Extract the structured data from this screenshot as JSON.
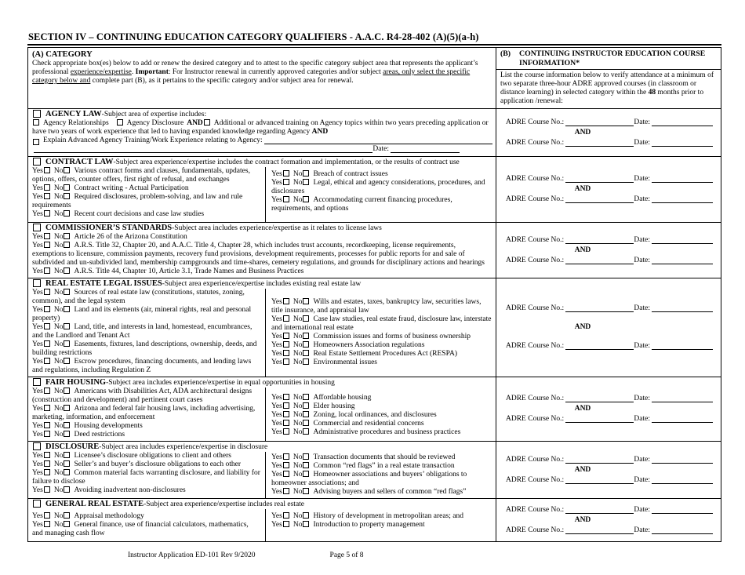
{
  "title": "SECTION IV – CONTINUING EDUCATION CATEGORY QUALIFIERS - A.A.C. R4-28-402 (A)(5)(a-h)",
  "labels": {
    "yes": "Yes",
    "no": "No",
    "and": "AND",
    "course_no": "ADRE Course No.:",
    "date": "Date:"
  },
  "header_a": {
    "title": "(A) CATEGORY",
    "intro_parts": [
      {
        "t": "Check appropriate box(es) below to add or renew the desired category and to attest to the specific category subject area that represents the applicant’s professional "
      },
      {
        "t": "experience/expertise",
        "u": true
      },
      {
        "t": ". "
      },
      {
        "t": "Important",
        "b": true
      },
      {
        "t": ": For Instructor renewal in currently approved categories and/or subject "
      },
      {
        "t": "areas, only select the specific category below and",
        "u": true
      },
      {
        "t": " complete part (B), as it pertains to the specific category and/or subject area for renewal."
      }
    ]
  },
  "header_b": {
    "prefix": "(B)",
    "title": "CONTINUING INSTRUCTOR EDUCATION COURSE INFORMATION*",
    "paragraph_parts": [
      {
        "t": "List the course information below to verify attendance at a minimum of two separate three-hour ADRE approved courses (in classroom or distance learning) in selected category within the "
      },
      {
        "t": "48",
        "b": true
      },
      {
        "t": " months prior to application /renewal:"
      }
    ]
  },
  "sections": [
    {
      "id": "agency-law",
      "type": "agency",
      "name": "AGENCY LAW",
      "desc": "-Subject area of expertise includes:",
      "opt1": "Agency Relationships",
      "opt2": "Agency Disclosure",
      "and1": "AND",
      "opt3": "Additional or advanced training on Agency topics within two years preceding application",
      "cont": "or have two years of work experience that led to having expanded knowledge regarding Agency ",
      "and2": "AND",
      "explain": "Explain Advanced Agency Training/Work Experience relating to Agency:",
      "date_label": "Date:"
    },
    {
      "id": "contract-law",
      "type": "two",
      "name": "CONTRACT LAW",
      "desc": "-Subject area experience/expertise includes the contract formation and implementation, or the results of contract use",
      "left": [
        "Various contract forms and clauses, fundamentals, updates, options, offers, counter offers, first right of refusal, and exchanges",
        "Contract writing - Actual Participation",
        "Required disclosures, problem-solving, and law and rule requirements",
        "Recent court decisions and case law studies"
      ],
      "right": [
        "Breach of contract issues",
        "Legal, ethical and agency considerations, procedures, and disclosures",
        "Accommodating current financing procedures, requirements, and options"
      ]
    },
    {
      "id": "commissioners-standards",
      "type": "one",
      "name": "COMMISSIONER’S STANDARDS",
      "desc": "-Subject area includes experience/expertise as it relates to license laws",
      "items": [
        "Article 26 of the Arizona Constitution",
        "A.R.S. Title 32, Chapter 20, and A.A.C. Title 4, Chapter 28, which includes trust accounts, recordkeeping, license requirements, exemptions to licensure, commission payments, recovery fund provisions, development requirements, processes for public reports for and sale of subdivided and un-subdivided land, membership campgrounds and time-shares, cemetery regulations, and grounds for disciplinary actions and hearings",
        "A.R.S. Title 44, Chapter 10, Article 3.1, Trade Names and Business Practices"
      ]
    },
    {
      "id": "real-estate-legal-issues",
      "type": "two",
      "name": "REAL ESTATE LEGAL ISSUES",
      "desc": "-Subject area experience/expertise includes existing real estate law",
      "left": [
        "Sources of real estate law (constitutions, statutes, zoning, common), and the legal system",
        "Land and its elements (air, mineral rights, real and personal property)",
        "Land, title, and interests in land, homestead, encumbrances, and the Landlord and Tenant Act",
        "Easements, fixtures, land descriptions, ownership, deeds, and building restrictions",
        "Escrow procedures, financing documents, and lending laws and regulations, including Regulation Z"
      ],
      "right": [
        "Wills and estates, taxes, bankruptcy law, securities laws, title insurance, and appraisal law",
        "Case law studies, real estate fraud, disclosure law, interstate and international real estate",
        "Commission issues and forms of business ownership",
        "Homeowners Association regulations",
        "Real Estate Settlement Procedures Act (RESPA)",
        "Environmental issues"
      ]
    },
    {
      "id": "fair-housing",
      "type": "two",
      "name": "FAIR HOUSING",
      "desc": "-Subject area includes experience/expertise in equal opportunities in housing",
      "left": [
        "Americans with Disabilities Act, ADA architectural designs (construction and development) and pertinent court cases",
        "Arizona and federal fair housing laws, including advertising, marketing, information, and enforcement",
        "Housing developments",
        "Deed restrictions"
      ],
      "right": [
        "Affordable housing",
        "Elder housing",
        "Zoning, local ordinances, and disclosures",
        "Commercial and residential concerns",
        "Administrative procedures and business practices"
      ]
    },
    {
      "id": "disclosure",
      "type": "two",
      "name": "DISCLOSURE",
      "desc": "-Subject area includes experience/expertise in disclosure",
      "left": [
        "Licensee’s disclosure obligations to client and others",
        "Seller’s and buyer’s disclosure obligations to each other",
        "Common material facts warranting disclosure, and liability for failure to disclose",
        "Avoiding inadvertent non-disclosures"
      ],
      "right": [
        "Transaction documents that should be reviewed",
        "Common “red flags” in a real estate transaction",
        "Homeowner associations and buyers’ obligations to homeowner associations; and",
        "Advising buyers and sellers of common “red flags”"
      ]
    },
    {
      "id": "general-real-estate",
      "type": "two",
      "name": "GENERAL REAL ESTATE",
      "desc": "-Subject area experience/expertise includes real estate",
      "left": [
        "Appraisal methodology",
        "General finance, use of financial calculators, mathematics, and managing cash flow"
      ],
      "right": [
        "History of development in metropolitan areas; and",
        "Introduction to property management"
      ]
    }
  ],
  "footer": {
    "left": "Instructor Application ED-101 Rev 9/2020",
    "right": "Page 5 of 8"
  }
}
